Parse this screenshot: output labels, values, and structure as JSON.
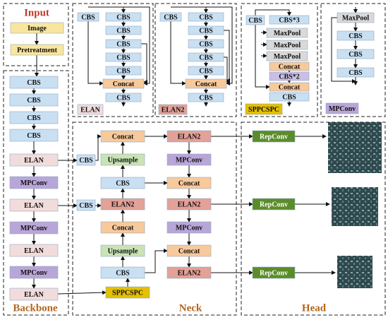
{
  "panels": {
    "input": {
      "title": "Input",
      "blocks": [
        "Image",
        "Pretreatment"
      ]
    },
    "backbone": {
      "title": "Backbone",
      "blocks": [
        "CBS",
        "CBS",
        "CBS",
        "CBS",
        "ELAN",
        "MPConv",
        "ELAN",
        "MPConv",
        "ELAN",
        "MPConv",
        "ELAN"
      ]
    },
    "elan": {
      "title": "ELAN",
      "blocks": [
        "CBS",
        "CBS",
        "CBS",
        "CBS",
        "CBS",
        "CBS",
        "Concat",
        "CBS"
      ]
    },
    "elan2": {
      "title": "ELAN2",
      "blocks": [
        "CBS",
        "CBS",
        "CBS",
        "CBS",
        "CBS",
        "CBS",
        "Concat",
        "CBS"
      ]
    },
    "sppcspc": {
      "title": "SPPCSPC",
      "blocks": [
        "CBS",
        "CBS*3",
        "MaxPool",
        "MaxPool",
        "MaxPool",
        "Concat",
        "CBS*2",
        "Concat",
        "CBS"
      ]
    },
    "mpconv": {
      "title": "MPConv",
      "blocks": [
        "MaxPool",
        "CBS",
        "CBS",
        "CBS"
      ]
    },
    "neck": {
      "title": "Neck",
      "blocks": [
        "Concat",
        "Upsample",
        "CBS",
        "ELAN2",
        "Concat",
        "Upsample",
        "CBS",
        "CBS",
        "CBS",
        "SPPCSPC",
        "ELAN2",
        "MPConv",
        "Concat",
        "ELAN2",
        "MPConv",
        "Concat",
        "ELAN2"
      ]
    },
    "head": {
      "title": "Head",
      "blocks": [
        "RepConv",
        "RepConv",
        "RepConv"
      ]
    }
  }
}
